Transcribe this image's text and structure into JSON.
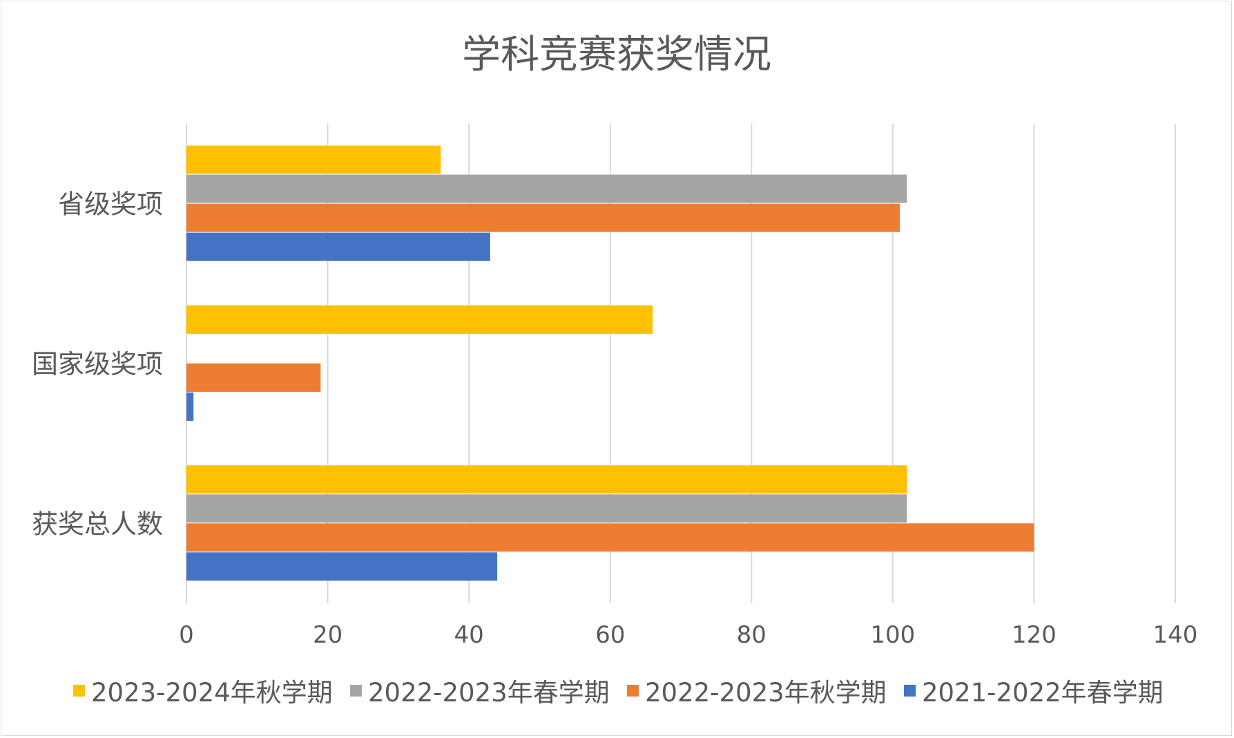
{
  "chart_data": {
    "type": "bar",
    "orientation": "horizontal",
    "title": "学科竞赛获奖情况",
    "categories": [
      "省级奖项",
      "国家级奖项",
      "获奖总人数"
    ],
    "series": [
      {
        "name": "2023-2024年秋学期",
        "color": "#FFC000",
        "values": [
          36,
          66,
          102
        ]
      },
      {
        "name": "2022-2023年春学期",
        "color": "#A5A5A5",
        "values": [
          102,
          0,
          102
        ]
      },
      {
        "name": "2022-2023年秋学期",
        "color": "#ED7D31",
        "values": [
          101,
          19,
          120
        ]
      },
      {
        "name": "2021-2022年春学期",
        "color": "#4472C4",
        "values": [
          43,
          1,
          44
        ]
      }
    ],
    "xlim": [
      0,
      140
    ],
    "xticks": [
      "0",
      "20",
      "40",
      "60",
      "80",
      "100",
      "120",
      "140"
    ],
    "grid": true,
    "legend": "bottom"
  }
}
